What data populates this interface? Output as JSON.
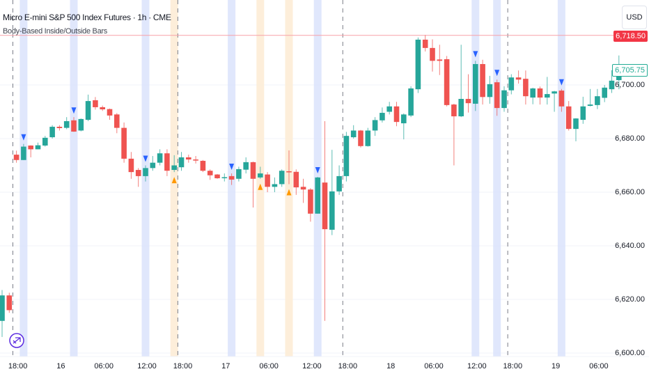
{
  "header": {
    "title": "Micro E-mini S&P 500 Index Futures · 1h · CME",
    "indicator": "Body-Based Inside/Outside Bars"
  },
  "currency_button": "USD",
  "price_scale": {
    "ticks": [
      "6,700.00",
      "6,680.00",
      "6,660.00",
      "6,640.00",
      "6,620.00",
      "6,600.00"
    ],
    "tick_values": [
      6700,
      6680,
      6660,
      6640,
      6620,
      6600
    ],
    "last_price": "6,705.75",
    "line_price_label": "6,718.50",
    "line_price_value": 6718.5
  },
  "time_scale": {
    "labels": [
      {
        "text": "18:00",
        "index": 2
      },
      {
        "text": "16",
        "index": 8
      },
      {
        "text": "06:00",
        "index": 14
      },
      {
        "text": "12:00",
        "index": 20
      },
      {
        "text": "18:00",
        "index": 25
      },
      {
        "text": "17",
        "index": 31
      },
      {
        "text": "06:00",
        "index": 37
      },
      {
        "text": "12:00",
        "index": 43
      },
      {
        "text": "18:00",
        "index": 48
      },
      {
        "text": "18",
        "index": 54
      },
      {
        "text": "06:00",
        "index": 60
      },
      {
        "text": "12:00",
        "index": 66
      },
      {
        "text": "18:00",
        "index": 71
      },
      {
        "text": "19",
        "index": 77
      },
      {
        "text": "06:00",
        "index": 83
      }
    ],
    "session_breaks": [
      2,
      25,
      48,
      71
    ]
  },
  "colors": {
    "up": "#26a69a",
    "down": "#ef5350",
    "blue_band": "#dbe3fb",
    "orange_band": "#fdebd3",
    "blue_marker": "#2962ff",
    "orange_marker": "#ff9800",
    "line": "#f7a1a8",
    "marker_circle": "#5b2be0"
  },
  "chart_data": {
    "type": "candlestick",
    "title": "Micro E-mini S&P 500 Index Futures · 1h · CME",
    "ylim": [
      6598,
      6731
    ],
    "ohlc": [
      [
        6612,
        6623.5,
        6606,
        6621.5
      ],
      [
        6621.5,
        6622.5,
        6615,
        6616
      ],
      [
        6674,
        6675.5,
        6671,
        6672
      ],
      [
        6672,
        6678,
        6672,
        6677
      ],
      [
        6677.4,
        6677.5,
        6673,
        6676
      ],
      [
        6676,
        6678.5,
        6676,
        6677.5
      ],
      [
        6677.4,
        6681,
        6677,
        6680.3
      ],
      [
        6680.5,
        6685,
        6680,
        6684.4
      ],
      [
        6684.4,
        6685,
        6683,
        6683.9
      ],
      [
        6684,
        6688,
        6683.5,
        6686.5
      ],
      [
        6686.8,
        6688,
        6682.5,
        6682.6
      ],
      [
        6683,
        6687.5,
        6682.7,
        6687.3
      ],
      [
        6687,
        6696.4,
        6686.5,
        6694
      ],
      [
        6694.3,
        6695.5,
        6690.8,
        6691.7
      ],
      [
        6691.7,
        6692.3,
        6690.3,
        6690.9
      ],
      [
        6691,
        6691.2,
        6687,
        6688.6
      ],
      [
        6689,
        6689.5,
        6682,
        6684
      ],
      [
        6684,
        6686,
        6671,
        6672.5
      ],
      [
        6672.5,
        6675,
        6665,
        6667.5
      ],
      [
        6668.3,
        6669,
        6662,
        6666
      ],
      [
        6666,
        6670,
        6664,
        6669
      ],
      [
        6669,
        6673.5,
        6668,
        6671
      ],
      [
        6671,
        6676,
        6670,
        6674.5
      ],
      [
        6674.5,
        6676,
        6666,
        6668
      ],
      [
        6668.3,
        6673.8,
        6667.5,
        6670
      ],
      [
        6669.3,
        6675,
        6668,
        6673
      ],
      [
        6673,
        6674,
        6671,
        6672.2
      ],
      [
        6672.2,
        6673.5,
        6670.7,
        6671.8
      ],
      [
        6671.7,
        6672,
        6667.5,
        6668
      ],
      [
        6668,
        6668.5,
        6664.6,
        6666.3
      ],
      [
        6666.6,
        6666.8,
        6665,
        6665.2
      ],
      [
        6665.3,
        6667,
        6664,
        6665.6
      ],
      [
        6666,
        6667,
        6662.7,
        6664.7
      ],
      [
        6665,
        6669.5,
        6664,
        6668.6
      ],
      [
        6668.4,
        6673,
        6667,
        6671.2
      ],
      [
        6671.2,
        6671.4,
        6654.3,
        6665
      ],
      [
        6665.5,
        6669.5,
        6665,
        6667
      ],
      [
        6666.6,
        6667.5,
        6660,
        6662
      ],
      [
        6662,
        6665.5,
        6660,
        6663
      ],
      [
        6663,
        6668.5,
        6662,
        6668
      ],
      [
        6667.8,
        6675.6,
        6663,
        6667.5
      ],
      [
        6667.6,
        6668.5,
        6659,
        6661.8
      ],
      [
        6662,
        6665,
        6656,
        6661
      ],
      [
        6661,
        6661.5,
        6649,
        6652
      ],
      [
        6652,
        6665.7,
        6652,
        6665.5
      ],
      [
        6663.6,
        6686.5,
        6612,
        6646.2
      ],
      [
        6646,
        6675.8,
        6644,
        6660.3
      ],
      [
        6660.3,
        6670,
        6659,
        6666
      ],
      [
        6666,
        6682.5,
        6664,
        6681
      ],
      [
        6680.5,
        6685,
        6680,
        6683
      ],
      [
        6683,
        6683.2,
        6676.7,
        6677.2
      ],
      [
        6677.2,
        6684,
        6677,
        6683
      ],
      [
        6683,
        6688,
        6681,
        6686.9
      ],
      [
        6686.8,
        6691.6,
        6686,
        6689.6
      ],
      [
        6690,
        6693.7,
        6689,
        6692
      ],
      [
        6692,
        6693.7,
        6684.6,
        6686.2
      ],
      [
        6685.7,
        6689.4,
        6679.7,
        6689
      ],
      [
        6688.6,
        6699.5,
        6688,
        6698.7
      ],
      [
        6698.4,
        6717.7,
        6697,
        6716.9
      ],
      [
        6716.9,
        6718.6,
        6712.5,
        6713.8
      ],
      [
        6713.8,
        6717,
        6705,
        6709
      ],
      [
        6709.5,
        6715,
        6703.7,
        6709
      ],
      [
        6709.6,
        6710.8,
        6692,
        6692.5
      ],
      [
        6692.7,
        6693,
        6670,
        6688.3
      ],
      [
        6688.3,
        6715,
        6688,
        6694.8
      ],
      [
        6694.8,
        6704,
        6689.7,
        6693.2
      ],
      [
        6693,
        6709,
        6690.3,
        6707.8
      ],
      [
        6707.8,
        6709.4,
        6692.7,
        6695.5
      ],
      [
        6695.5,
        6703.4,
        6693,
        6700.3
      ],
      [
        6701,
        6702,
        6688.5,
        6691.4
      ],
      [
        6691.4,
        6699.5,
        6690,
        6698
      ],
      [
        6698,
        6704,
        6696.5,
        6702.8
      ],
      [
        6702.8,
        6705.4,
        6700.5,
        6702
      ],
      [
        6702.3,
        6705.4,
        6692.7,
        6695.8
      ],
      [
        6695.3,
        6699,
        6692.8,
        6698.7
      ],
      [
        6698.7,
        6699.4,
        6692.7,
        6695.3
      ],
      [
        6695.3,
        6703,
        6692.7,
        6696.6
      ],
      [
        6696.8,
        6697.8,
        6690,
        6697.6
      ],
      [
        6697.9,
        6698.5,
        6690,
        6692
      ],
      [
        6692,
        6694,
        6683,
        6683.6
      ],
      [
        6683.6,
        6687.6,
        6679,
        6687.5
      ],
      [
        6687,
        6695.6,
        6685.5,
        6692
      ],
      [
        6692.2,
        6698.5,
        6692,
        6692.7
      ],
      [
        6692.5,
        6698.5,
        6691,
        6695.8
      ],
      [
        6695.2,
        6700,
        6693.6,
        6699
      ],
      [
        6698.4,
        6705.5,
        6697,
        6701.6
      ],
      [
        6701.8,
        6711,
        6698.4,
        6705.75
      ]
    ],
    "signals": [
      {
        "index": 3,
        "type": "inside",
        "band": "blue",
        "marker": "down"
      },
      {
        "index": 10,
        "type": "inside",
        "band": "blue",
        "marker": "down"
      },
      {
        "index": 20,
        "type": "inside",
        "band": "blue",
        "marker": "down"
      },
      {
        "index": 24,
        "type": "outside",
        "band": "orange",
        "marker": "up"
      },
      {
        "index": 32,
        "type": "inside",
        "band": "blue",
        "marker": "down"
      },
      {
        "index": 36,
        "type": "outside",
        "band": "orange",
        "marker": "up"
      },
      {
        "index": 40,
        "type": "outside",
        "band": "orange",
        "marker": "up"
      },
      {
        "index": 44,
        "type": "inside",
        "band": "blue",
        "marker": "down"
      },
      {
        "index": 66,
        "type": "inside",
        "band": "blue",
        "marker": "down"
      },
      {
        "index": 69,
        "type": "inside",
        "band": "blue",
        "marker": "down"
      },
      {
        "index": 78,
        "type": "inside",
        "band": "blue",
        "marker": "down"
      }
    ]
  }
}
